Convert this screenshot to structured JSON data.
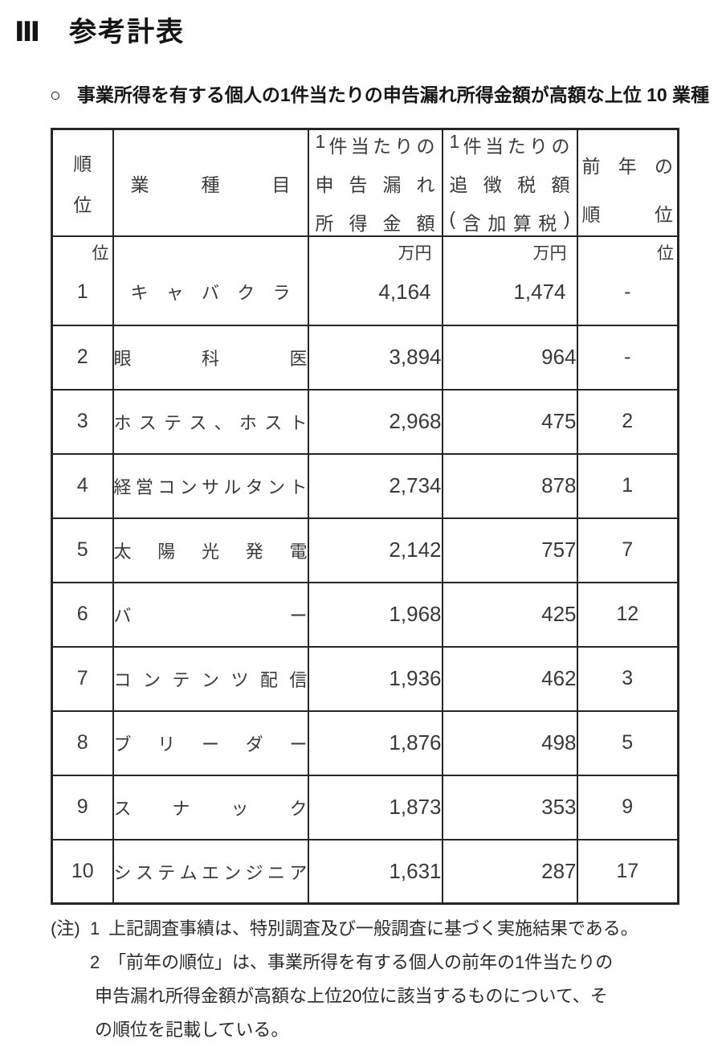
{
  "page": {
    "section_number": "Ⅲ",
    "title": "参考計表",
    "subtitle_marker": "○",
    "subtitle": "事業所得を有する個人の1件当たりの申告漏れ所得金額が高額な上位 10 業種"
  },
  "table": {
    "headers": {
      "rank": {
        "line1": "順",
        "line2": "位"
      },
      "industry": "業種目",
      "income": {
        "line1": "1件当たりの",
        "line2": "申告漏れ",
        "line3": "所得金額"
      },
      "tax": {
        "line1": "1件当たりの",
        "line2": "追徴税額",
        "line3": "(含加算税)"
      },
      "prev": {
        "line1": "前年の",
        "line2": "順位"
      }
    },
    "units": {
      "rank": "位",
      "income": "万円",
      "tax": "万円",
      "prev": "位"
    },
    "rows": [
      {
        "rank": "1",
        "industry": "キャバクラ",
        "income": "4,164",
        "tax": "1,474",
        "prev": "-"
      },
      {
        "rank": "2",
        "industry": "眼科医",
        "income": "3,894",
        "tax": "964",
        "prev": "-"
      },
      {
        "rank": "3",
        "industry": "ホステス、ホスト",
        "income": "2,968",
        "tax": "475",
        "prev": "2"
      },
      {
        "rank": "4",
        "industry": "経営コンサルタント",
        "income": "2,734",
        "tax": "878",
        "prev": "1"
      },
      {
        "rank": "5",
        "industry": "太陽光発電",
        "income": "2,142",
        "tax": "757",
        "prev": "7"
      },
      {
        "rank": "6",
        "industry": "バー",
        "income": "1,968",
        "tax": "425",
        "prev": "12"
      },
      {
        "rank": "7",
        "industry": "コンテンツ配信",
        "income": "1,936",
        "tax": "462",
        "prev": "3"
      },
      {
        "rank": "8",
        "industry": "ブリーダー",
        "income": "1,876",
        "tax": "498",
        "prev": "5"
      },
      {
        "rank": "9",
        "industry": "スナック",
        "income": "1,873",
        "tax": "353",
        "prev": "9"
      },
      {
        "rank": "10",
        "industry": "システムエンジニア",
        "income": "1,631",
        "tax": "287",
        "prev": "17"
      }
    ]
  },
  "notes": {
    "label": "(注)",
    "items": [
      {
        "num": "1",
        "lines": [
          "上記調査事績は、特別調査及び一般調査に基づく実施結果である。"
        ]
      },
      {
        "num": "2",
        "lines": [
          "「前年の順位」は、事業所得を有する個人の前年の1件当たりの",
          "申告漏れ所得金額が高額な上位20位に該当するものについて、そ",
          "の順位を記載している。"
        ]
      }
    ]
  }
}
